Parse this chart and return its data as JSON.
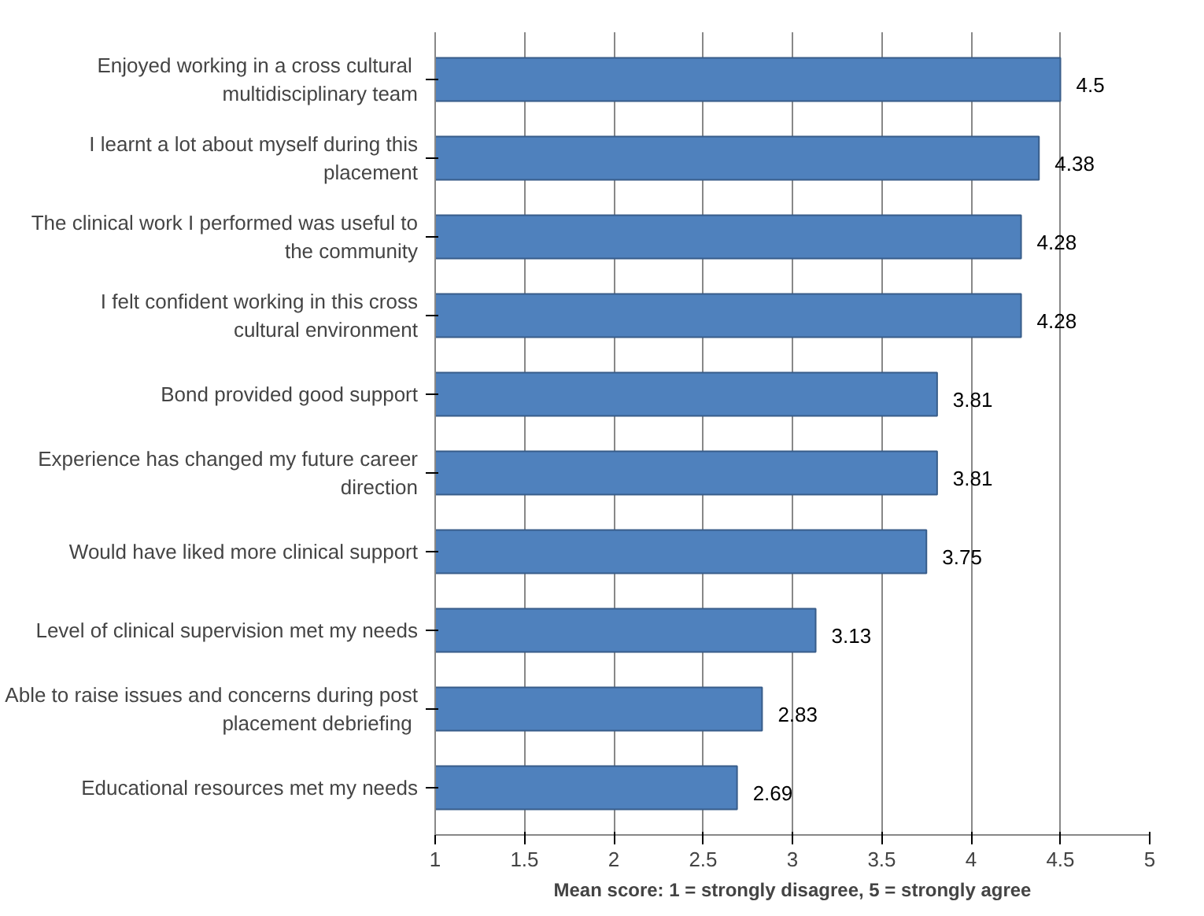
{
  "chart_data": {
    "type": "bar",
    "orientation": "horizontal",
    "xlabel": "Mean score: 1 = strongly disagree, 5 = strongly agree",
    "categories": [
      "Enjoyed working in a  cross cultural multidisciplinary team",
      "I learnt a lot about myself during this placement",
      "The clinical work I performed was useful to the community",
      "I felt confident working in this cross cultural environment",
      "Bond provided good support",
      "Experience has changed my future career direction",
      "Would have liked more clinical support",
      "Level of clinical supervision met my needs",
      "Able to raise issues and concerns during post placement  debriefing",
      "Educational resources met my needs"
    ],
    "values": [
      4.5,
      4.38,
      4.28,
      4.28,
      3.81,
      3.81,
      3.75,
      3.13,
      2.83,
      2.69
    ],
    "color": "#4f81bd",
    "data_labels": true,
    "grid": "x",
    "xlim": [
      1,
      5
    ],
    "xticks": [
      1,
      1.5,
      2,
      2.5,
      3,
      3.5,
      4,
      4.5,
      5
    ]
  }
}
